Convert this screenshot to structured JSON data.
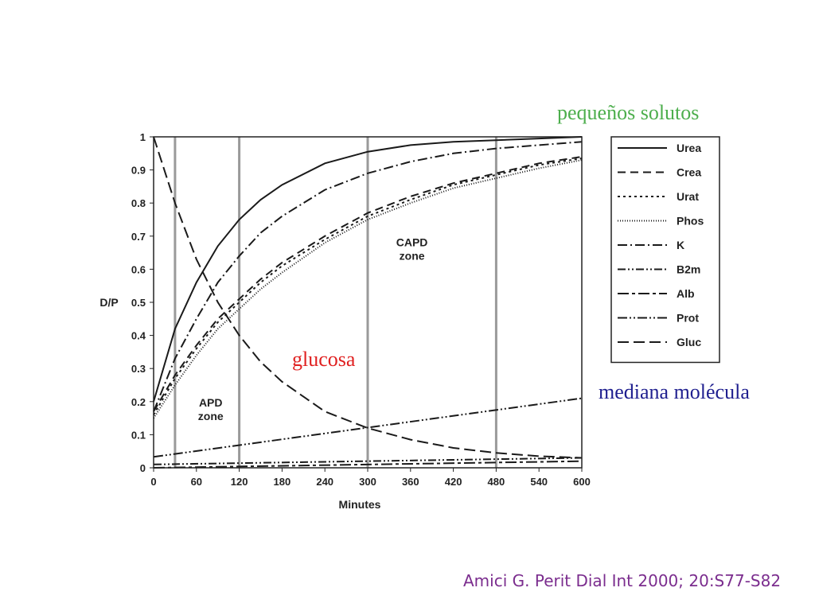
{
  "annotations": {
    "small_solutes": "pequeños solutos",
    "glucose": "glucosa",
    "middle_molecule": "mediana molécula"
  },
  "citation": "Amici G. Perit Dial Int 2000; 20:S77-S82",
  "colors": {
    "small_solutes": "#4cae4c",
    "glucose": "#e02020",
    "middle_molecule": "#1f1f8f",
    "citation": "#7b2d8e"
  },
  "chart_data": {
    "type": "line",
    "xlabel": "Minutes",
    "ylabel": "D/P",
    "xlim": [
      0,
      600
    ],
    "ylim": [
      0,
      1
    ],
    "xticks": [
      0,
      60,
      120,
      180,
      240,
      300,
      360,
      420,
      480,
      540,
      600
    ],
    "yticks": [
      0,
      0.1,
      0.2,
      0.3,
      0.4,
      0.5,
      0.6,
      0.7,
      0.8,
      0.9,
      1
    ],
    "legend_position": "top-right",
    "vertical_lines": [
      30,
      120,
      300,
      480
    ],
    "zone_labels": [
      {
        "text": [
          "APD",
          "zone"
        ],
        "x": 80,
        "y": 0.185
      },
      {
        "text": [
          "CAPD",
          "zone"
        ],
        "x": 362,
        "y": 0.67
      }
    ],
    "series": [
      {
        "name": "Urea",
        "dash": "",
        "x": [
          0,
          30,
          60,
          90,
          120,
          150,
          180,
          240,
          300,
          360,
          420,
          480,
          540,
          600
        ],
        "y": [
          0.2,
          0.42,
          0.56,
          0.67,
          0.75,
          0.81,
          0.855,
          0.92,
          0.955,
          0.975,
          0.985,
          0.99,
          0.995,
          1.0
        ]
      },
      {
        "name": "Crea",
        "dash": "10,6",
        "x": [
          0,
          30,
          60,
          90,
          120,
          150,
          180,
          240,
          300,
          360,
          420,
          480,
          540,
          600
        ],
        "y": [
          0.17,
          0.28,
          0.37,
          0.45,
          0.51,
          0.57,
          0.62,
          0.7,
          0.77,
          0.82,
          0.86,
          0.89,
          0.92,
          0.94
        ]
      },
      {
        "name": "Urat",
        "dash": "3,4",
        "x": [
          0,
          30,
          60,
          90,
          120,
          150,
          180,
          240,
          300,
          360,
          420,
          480,
          540,
          600
        ],
        "y": [
          0.16,
          0.27,
          0.36,
          0.44,
          0.5,
          0.56,
          0.61,
          0.69,
          0.76,
          0.81,
          0.855,
          0.885,
          0.915,
          0.935
        ]
      },
      {
        "name": "Phos",
        "dash": "1,2",
        "x": [
          0,
          30,
          60,
          90,
          120,
          150,
          180,
          240,
          300,
          360,
          420,
          480,
          540,
          600
        ],
        "y": [
          0.15,
          0.25,
          0.34,
          0.42,
          0.48,
          0.54,
          0.59,
          0.68,
          0.75,
          0.8,
          0.845,
          0.875,
          0.905,
          0.93
        ]
      },
      {
        "name": "K",
        "dash": "12,4,2,4",
        "x": [
          0,
          30,
          60,
          90,
          120,
          150,
          180,
          240,
          300,
          360,
          420,
          480,
          540,
          600
        ],
        "y": [
          0.17,
          0.33,
          0.45,
          0.56,
          0.64,
          0.71,
          0.76,
          0.84,
          0.89,
          0.925,
          0.95,
          0.965,
          0.975,
          0.985
        ]
      },
      {
        "name": "B2m",
        "dash": "10,3,2,3,2,3",
        "x": [
          0,
          600
        ],
        "y": [
          0.01,
          0.03
        ]
      },
      {
        "name": "Alb",
        "dash": "14,4,4,4",
        "x": [
          0,
          600
        ],
        "y": [
          0.0,
          0.02
        ]
      },
      {
        "name": "Prot",
        "dash": "12,3,2,3,2,3",
        "x": [
          0,
          600
        ],
        "y": [
          0.033,
          0.21
        ]
      },
      {
        "name": "Gluc",
        "dash": "14,6",
        "x": [
          0,
          30,
          60,
          90,
          120,
          150,
          180,
          240,
          300,
          360,
          420,
          480,
          540,
          600
        ],
        "y": [
          1.0,
          0.8,
          0.63,
          0.5,
          0.4,
          0.32,
          0.26,
          0.17,
          0.12,
          0.085,
          0.06,
          0.045,
          0.035,
          0.03
        ]
      }
    ]
  }
}
